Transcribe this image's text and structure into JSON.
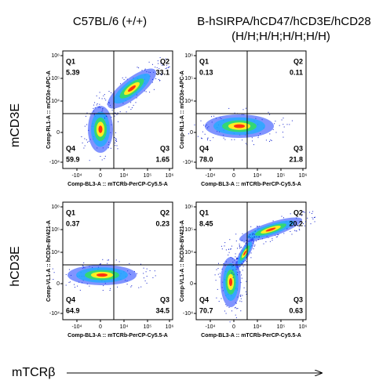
{
  "header": {
    "col1": "C57BL/6 (+/+)",
    "col2_line1": "B-hSIRPA/hCD47/hCD3E/hCD28",
    "col2_line2": "(H/H;H/H;H/H;H/H)"
  },
  "x_ticks": [
    "-10⁴",
    "0",
    "10⁴",
    "10⁵",
    "10⁶"
  ],
  "y_ticks": [
    "10⁶",
    "10⁵",
    "10⁴",
    "0",
    "-10⁴"
  ],
  "rows": [
    {
      "label": "mCD3E",
      "panels": [
        {
          "y_axis_label": "Comp-RL1-A :: mCD3e-APC-A",
          "x_axis_label": "Comp-BL3-A :: mTCRb-PerCP-Cy5.5-A",
          "quadrants": [
            {
              "name": "Q1",
              "value": "5.39"
            },
            {
              "name": "Q2",
              "value": "33.1"
            },
            {
              "name": "Q3",
              "value": "1.65"
            },
            {
              "name": "Q4",
              "value": "59.9"
            }
          ]
        },
        {
          "y_axis_label": "Comp-RL1-A :: mCD3e-APC-A",
          "x_axis_label": "Comp-BL3-A :: mTCRb-PerCP-Cy5.5-A",
          "quadrants": [
            {
              "name": "Q1",
              "value": "0.13"
            },
            {
              "name": "Q2",
              "value": "0.11"
            },
            {
              "name": "Q3",
              "value": "21.8"
            },
            {
              "name": "Q4",
              "value": "78.0"
            }
          ]
        }
      ]
    },
    {
      "label": "hCD3E",
      "panels": [
        {
          "y_axis_label": "Comp-VL1-A :: hCD3e-BV421-A",
          "x_axis_label": "Comp-BL3-A :: mTCRb-PerCP-Cy5.5-A",
          "quadrants": [
            {
              "name": "Q1",
              "value": "0.37"
            },
            {
              "name": "Q2",
              "value": "0.23"
            },
            {
              "name": "Q3",
              "value": "34.5"
            },
            {
              "name": "Q4",
              "value": "64.9"
            }
          ]
        },
        {
          "y_axis_label": "Comp-VL1-A :: hCD3e-BV421-A",
          "x_axis_label": "Comp-BL3-A :: mTCRb-PerCP-Cy5.5-A",
          "quadrants": [
            {
              "name": "Q1",
              "value": "8.45"
            },
            {
              "name": "Q2",
              "value": "20.2"
            },
            {
              "name": "Q3",
              "value": "0.63"
            },
            {
              "name": "Q4",
              "value": "70.7"
            }
          ]
        }
      ]
    }
  ],
  "footer": {
    "x_label": "mTCRβ"
  }
}
